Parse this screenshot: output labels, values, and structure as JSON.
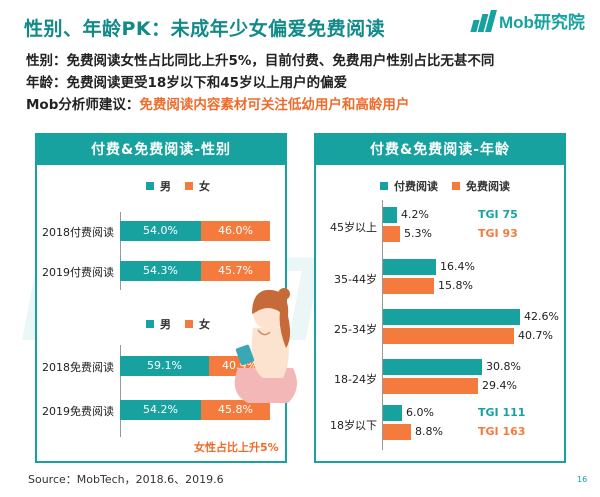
{
  "title": "性别、年龄PK：未成年少女偏爱免费阅读",
  "logo_text": "Mob研究院",
  "bullets": {
    "gender": "性别：免费阅读女性占比同比上升5%，目前付费、免费用户性别占比无甚不同",
    "age": "年龄：免费阅读更受18岁以下和45岁以上用户的偏爱",
    "advice_prefix": "Mob分析师建议：",
    "advice_text": "免费阅读内容素材可关注低幼用户和高龄用户"
  },
  "gender_panel": {
    "heading": "付费&免费阅读-性别",
    "legend_male": "男",
    "legend_female": "女",
    "note": "女性占比上升5%"
  },
  "age_panel": {
    "heading": "付费&免费阅读-年龄",
    "legend_paid": "付费阅读",
    "legend_free": "免费阅读"
  },
  "chart_data": [
    {
      "type": "bar",
      "title": "付费&免费阅读-性别",
      "categories": [
        "2018付费阅读",
        "2019付费阅读",
        "2018免费阅读",
        "2019免费阅读"
      ],
      "series": [
        {
          "name": "男",
          "values": [
            54.0,
            54.3,
            59.1,
            54.2
          ],
          "labels": [
            "54.0%",
            "54.3%",
            "59.1%",
            "54.2%"
          ]
        },
        {
          "name": "女",
          "values": [
            46.0,
            45.7,
            40.9,
            45.8
          ],
          "labels": [
            "46.0%",
            "45.7%",
            "40.9%",
            "45.8%"
          ]
        }
      ],
      "stacked": true,
      "colors": [
        "#17a2a0",
        "#f47b3d"
      ]
    },
    {
      "type": "bar",
      "title": "付费&免费阅读-年龄",
      "categories": [
        "45岁以上",
        "35-44岁",
        "25-34岁",
        "18-24岁",
        "18岁以下"
      ],
      "series": [
        {
          "name": "付费阅读",
          "values": [
            4.2,
            16.4,
            42.6,
            30.8,
            6.0
          ],
          "labels": [
            "4.2%",
            "16.4%",
            "42.6%",
            "30.8%",
            "6.0%"
          ]
        },
        {
          "name": "免费阅读",
          "values": [
            5.3,
            15.8,
            40.7,
            29.4,
            8.8
          ],
          "labels": [
            "5.3%",
            "15.8%",
            "40.7%",
            "29.4%",
            "8.8%"
          ]
        }
      ],
      "annotations": [
        {
          "category": "45岁以上",
          "series": "付费阅读",
          "text": "TGI 75"
        },
        {
          "category": "45岁以上",
          "series": "免费阅读",
          "text": "TGI 93"
        },
        {
          "category": "18岁以下",
          "series": "付费阅读",
          "text": "TGI 111"
        },
        {
          "category": "18岁以下",
          "series": "免费阅读",
          "text": "TGI 163"
        }
      ],
      "orientation": "horizontal",
      "colors": [
        "#17a2a0",
        "#f47b3d"
      ]
    }
  ],
  "source": "Source：MobTech，2018.6、2019.6",
  "page_number": "16"
}
